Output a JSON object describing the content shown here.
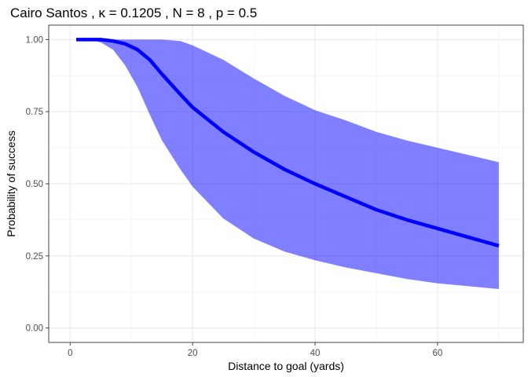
{
  "chart_data": {
    "type": "line",
    "title": "Cairo Santos , κ = 0.1205 , N = 8 , p = 0.5",
    "xlabel": "Distance to goal (yards)",
    "ylabel": "Probability of success",
    "xlim": [
      -3.5,
      74
    ],
    "ylim": [
      -0.05,
      1.05
    ],
    "x_ticks": [
      0,
      20,
      40,
      60
    ],
    "x_tick_labels": [
      "0",
      "20",
      "40",
      "60"
    ],
    "y_ticks": [
      0,
      0.25,
      0.5,
      0.75,
      1.0
    ],
    "y_tick_labels": [
      "0.00",
      "0.25",
      "0.50",
      "0.75",
      "1.00"
    ],
    "grid": true,
    "legend": "none",
    "series": [
      {
        "kind": "line",
        "color": "#0000ff",
        "x": [
          1,
          3,
          5,
          7,
          9,
          11,
          13,
          15,
          18,
          20,
          25,
          30,
          35,
          40,
          45,
          50,
          55,
          60,
          65,
          70
        ],
        "y": [
          1.0,
          1.0,
          1.0,
          0.995,
          0.985,
          0.965,
          0.93,
          0.88,
          0.81,
          0.765,
          0.68,
          0.61,
          0.55,
          0.5,
          0.455,
          0.41,
          0.375,
          0.345,
          0.315,
          0.285
        ]
      },
      {
        "kind": "ribbon",
        "color": "#0000ff",
        "opacity": 0.5,
        "x": [
          1,
          3,
          5,
          7,
          9,
          11,
          13,
          15,
          18,
          20,
          25,
          30,
          35,
          40,
          45,
          50,
          55,
          60,
          65,
          70
        ],
        "ymin": [
          1.0,
          1.0,
          0.99,
          0.965,
          0.91,
          0.835,
          0.74,
          0.65,
          0.55,
          0.49,
          0.38,
          0.31,
          0.265,
          0.235,
          0.21,
          0.19,
          0.17,
          0.155,
          0.145,
          0.135
        ],
        "ymax": [
          1.0,
          1.0,
          1.0,
          1.0,
          1.0,
          1.0,
          1.0,
          1.0,
          0.995,
          0.98,
          0.93,
          0.865,
          0.805,
          0.755,
          0.72,
          0.68,
          0.65,
          0.625,
          0.6,
          0.575
        ]
      }
    ]
  }
}
